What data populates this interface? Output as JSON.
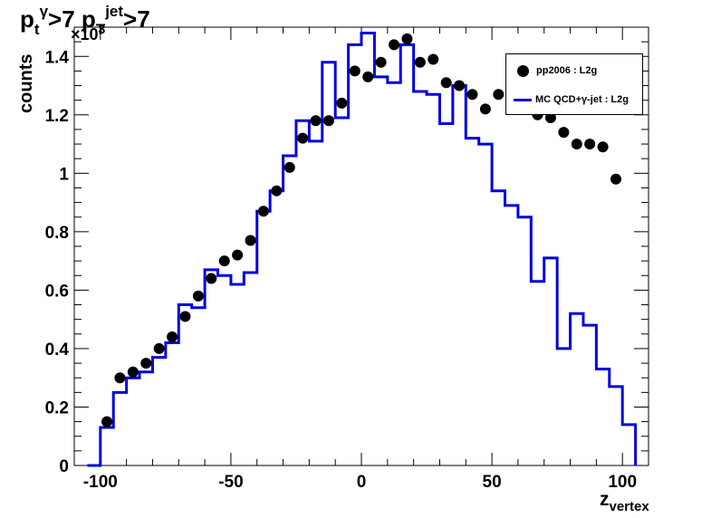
{
  "title": {
    "p": "p",
    "gamma_sup": "γ",
    "t_sub": "t",
    "gt7_a": ">7",
    "p2": "p",
    "jet_sup": "jet",
    "t_sub2": "T",
    "gt7_b": ">7"
  },
  "axis": {
    "ylabel": "counts",
    "xlabel_main": "z",
    "xlabel_sub": "vertex",
    "exponent_base": "×10",
    "exponent_power": "3"
  },
  "legend": {
    "data_label": "pp2006 : L2g",
    "mc_label": "MC QCD+γ-jet : L2g"
  },
  "colors": {
    "data_markers": "#000000",
    "mc_line": "#0000dd"
  },
  "chart_data": {
    "type": "scatter",
    "xlim": [
      -110,
      110
    ],
    "ylim": [
      0,
      1.5
    ],
    "xticks": [
      -100,
      -50,
      0,
      50,
      100
    ],
    "xtick_labels": [
      "-100",
      "-50",
      "0",
      "50",
      "100"
    ],
    "yticks": [
      0,
      0.2,
      0.4,
      0.6,
      0.8,
      1.0,
      1.2,
      1.4
    ],
    "ytick_labels": [
      "0",
      "0.2",
      "0.4",
      "0.6",
      "0.8",
      "1",
      "1.2",
      "1.4"
    ],
    "y_multiplier": 1000,
    "grid": false,
    "legend_position": "top-right",
    "series": [
      {
        "name": "pp2006 : L2g",
        "style": "markers",
        "x": [
          -97.5,
          -92.5,
          -87.5,
          -82.5,
          -77.5,
          -72.5,
          -67.5,
          -62.5,
          -57.5,
          -52.5,
          -47.5,
          -42.5,
          -37.5,
          -32.5,
          -27.5,
          -22.5,
          -17.5,
          -12.5,
          -7.5,
          -2.5,
          2.5,
          7.5,
          12.5,
          17.5,
          22.5,
          27.5,
          32.5,
          37.5,
          42.5,
          47.5,
          52.5,
          57.5,
          62.5,
          67.5,
          72.5,
          77.5,
          82.5,
          87.5,
          92.5,
          97.5
        ],
        "y": [
          0.15,
          0.3,
          0.32,
          0.35,
          0.4,
          0.44,
          0.51,
          0.58,
          0.64,
          0.7,
          0.72,
          0.77,
          0.87,
          0.94,
          1.02,
          1.12,
          1.18,
          1.18,
          1.24,
          1.35,
          1.33,
          1.38,
          1.44,
          1.46,
          1.38,
          1.39,
          1.31,
          1.3,
          1.27,
          1.22,
          1.27,
          1.26,
          1.26,
          1.2,
          1.19,
          1.14,
          1.1,
          1.1,
          1.09,
          0.98
        ]
      },
      {
        "name": "MC QCD+γ-jet : L2g",
        "style": "step",
        "bin_edges": [
          -105,
          -100,
          -95,
          -90,
          -85,
          -80,
          -75,
          -70,
          -65,
          -60,
          -55,
          -50,
          -45,
          -40,
          -35,
          -30,
          -25,
          -20,
          -15,
          -10,
          -5,
          0,
          5,
          10,
          15,
          20,
          25,
          30,
          35,
          40,
          45,
          50,
          55,
          60,
          65,
          70,
          75,
          80,
          85,
          90,
          95,
          100,
          105
        ],
        "values": [
          0.0,
          0.13,
          0.25,
          0.3,
          0.32,
          0.37,
          0.42,
          0.55,
          0.54,
          0.67,
          0.65,
          0.62,
          0.66,
          0.87,
          0.94,
          1.06,
          1.18,
          1.11,
          1.38,
          1.19,
          1.44,
          1.48,
          1.33,
          1.31,
          1.44,
          1.28,
          1.27,
          1.17,
          1.3,
          1.12,
          1.1,
          0.94,
          0.89,
          0.85,
          0.63,
          0.71,
          0.4,
          0.52,
          0.48,
          0.33,
          0.27,
          0.14,
          0.0
        ]
      }
    ]
  }
}
